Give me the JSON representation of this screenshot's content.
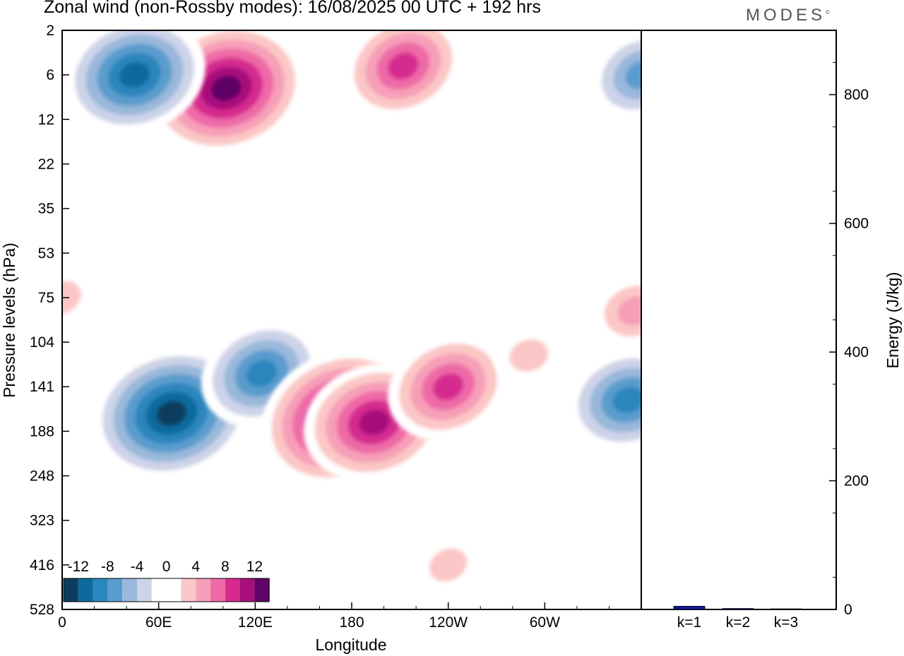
{
  "header": {
    "title": "Zonal wind (non-Rossby modes):  16/08/2025  00 UTC  + 192 hrs",
    "brand": "MODES",
    "brand_mark": "©"
  },
  "chart_data": [
    {
      "type": "heatmap",
      "title": "Zonal wind (non-Rossby modes):  16/08/2025  00 UTC  + 192 hrs",
      "xlabel": "Longitude",
      "ylabel": "Pressure levels (hPa)",
      "x_ticks": [
        "0",
        "60E",
        "120E",
        "180",
        "120W",
        "60W"
      ],
      "x_tick_values": [
        0,
        60,
        120,
        180,
        240,
        300
      ],
      "xlim": [
        0,
        360
      ],
      "y_ticks": [
        "2",
        "6",
        "12",
        "22",
        "35",
        "53",
        "75",
        "104",
        "141",
        "188",
        "248",
        "323",
        "416",
        "528"
      ],
      "y_axis_reversed": true,
      "colorbar": {
        "labels": [
          "-12",
          "-8",
          "-4",
          "0",
          "4",
          "8",
          "12"
        ],
        "levels": [
          -14,
          -12,
          -10,
          -8,
          -6,
          -4,
          -2,
          0,
          2,
          4,
          6,
          8,
          10,
          12,
          14
        ],
        "colors": [
          "#0b3d5c",
          "#0c6a9e",
          "#2a86bd",
          "#5a9ccd",
          "#99b8da",
          "#cdd3e8",
          "#ffffff",
          "#ffffff",
          "#fbc7c6",
          "#f79fb8",
          "#ee6aa7",
          "#d52b8f",
          "#a80f7c",
          "#5e0466"
        ],
        "placement": "bottom-left inside"
      },
      "features": [
        {
          "kind": "max",
          "value": 14,
          "lon": 102,
          "level_index": 1.3
        },
        {
          "kind": "max",
          "value": 10,
          "lon": 212,
          "level_index": 0.8
        },
        {
          "kind": "min",
          "value": -12,
          "lon": 45,
          "level_index": 1.0
        },
        {
          "kind": "min",
          "value": -8,
          "lon": 360,
          "level_index": 1.0
        },
        {
          "kind": "min",
          "value": -14,
          "lon": 68,
          "level_index": 8.6
        },
        {
          "kind": "min",
          "value": -10,
          "lon": 124,
          "level_index": 7.7
        },
        {
          "kind": "min",
          "value": -10,
          "lon": 352,
          "level_index": 8.3
        },
        {
          "kind": "max",
          "value": 14,
          "lon": 172,
          "level_index": 8.7
        },
        {
          "kind": "max",
          "value": 12,
          "lon": 194,
          "level_index": 8.8
        },
        {
          "kind": "max",
          "value": 10,
          "lon": 240,
          "level_index": 8.0
        },
        {
          "kind": "max",
          "value": 6,
          "lon": 356,
          "level_index": 6.3
        },
        {
          "kind": "max",
          "value": 4,
          "lon": 0,
          "level_index": 6.0
        },
        {
          "kind": "max",
          "value": 4,
          "lon": 290,
          "level_index": 7.3
        },
        {
          "kind": "max",
          "value": 4,
          "lon": 240,
          "level_index": 12.0
        }
      ],
      "grid": false,
      "legend": "none"
    },
    {
      "type": "bar",
      "categories": [
        "k=1",
        "k=2",
        "k=3"
      ],
      "values": [
        5,
        1.5,
        1
      ],
      "ylabel": "Energy (J/kg)",
      "ylim": [
        0,
        900
      ],
      "y_ticks": [
        "0",
        "200",
        "400",
        "600",
        "800"
      ],
      "bar_color": "#1515a0",
      "y_axis_side": "right"
    }
  ]
}
